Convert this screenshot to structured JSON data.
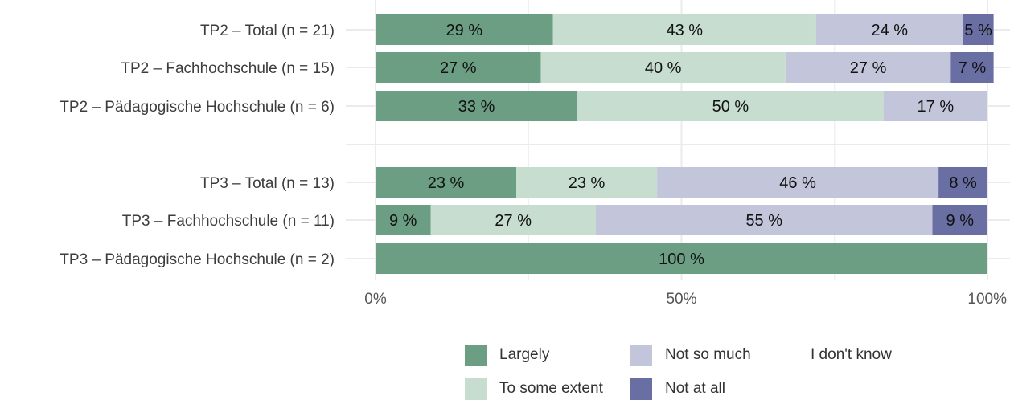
{
  "chart_data": {
    "type": "bar",
    "orientation": "horizontal",
    "stacked": true,
    "categories": [
      "TP2 – Total (n = 21)",
      "TP2 – Fachhochschule (n = 15)",
      "TP2 – Pädagogische Hochschule (n = 6)",
      "",
      "TP3 – Total (n = 13)",
      "TP3 – Fachhochschule (n = 11)",
      "TP3 – Pädagogische Hochschule (n = 2)"
    ],
    "series": [
      {
        "name": "Largely",
        "color": "#6b9e82",
        "values": [
          29,
          27,
          33,
          null,
          23,
          9,
          100
        ]
      },
      {
        "name": "To some extent",
        "color": "#c6ddd0",
        "values": [
          43,
          40,
          50,
          null,
          23,
          27,
          0
        ]
      },
      {
        "name": "Not so much",
        "color": "#c3c5db",
        "values": [
          24,
          27,
          17,
          null,
          46,
          55,
          0
        ]
      },
      {
        "name": "Not at all",
        "color": "#6a6fa3",
        "values": [
          5,
          7,
          0,
          null,
          8,
          9,
          0
        ]
      },
      {
        "name": "I don't know",
        "color": null,
        "values": [
          0,
          0,
          0,
          null,
          0,
          0,
          0
        ]
      }
    ],
    "data_labels": [
      [
        "29 %",
        "43 %",
        "24 %",
        "5 %"
      ],
      [
        "27 %",
        "40 %",
        "27 %",
        "7 %"
      ],
      [
        "33 %",
        "50 %",
        "17 %",
        ""
      ],
      [],
      [
        "23 %",
        "23 %",
        "46 %",
        "8 %"
      ],
      [
        "9 %",
        "27 %",
        "55 %",
        "9 %"
      ],
      [
        "100 %",
        "",
        "",
        ""
      ]
    ],
    "x_ticks": [
      "0%",
      "50%",
      "100%"
    ],
    "xlim": [
      0,
      100
    ],
    "grid": true,
    "legend_position": "bottom",
    "title": "",
    "xlabel": "",
    "ylabel": ""
  }
}
